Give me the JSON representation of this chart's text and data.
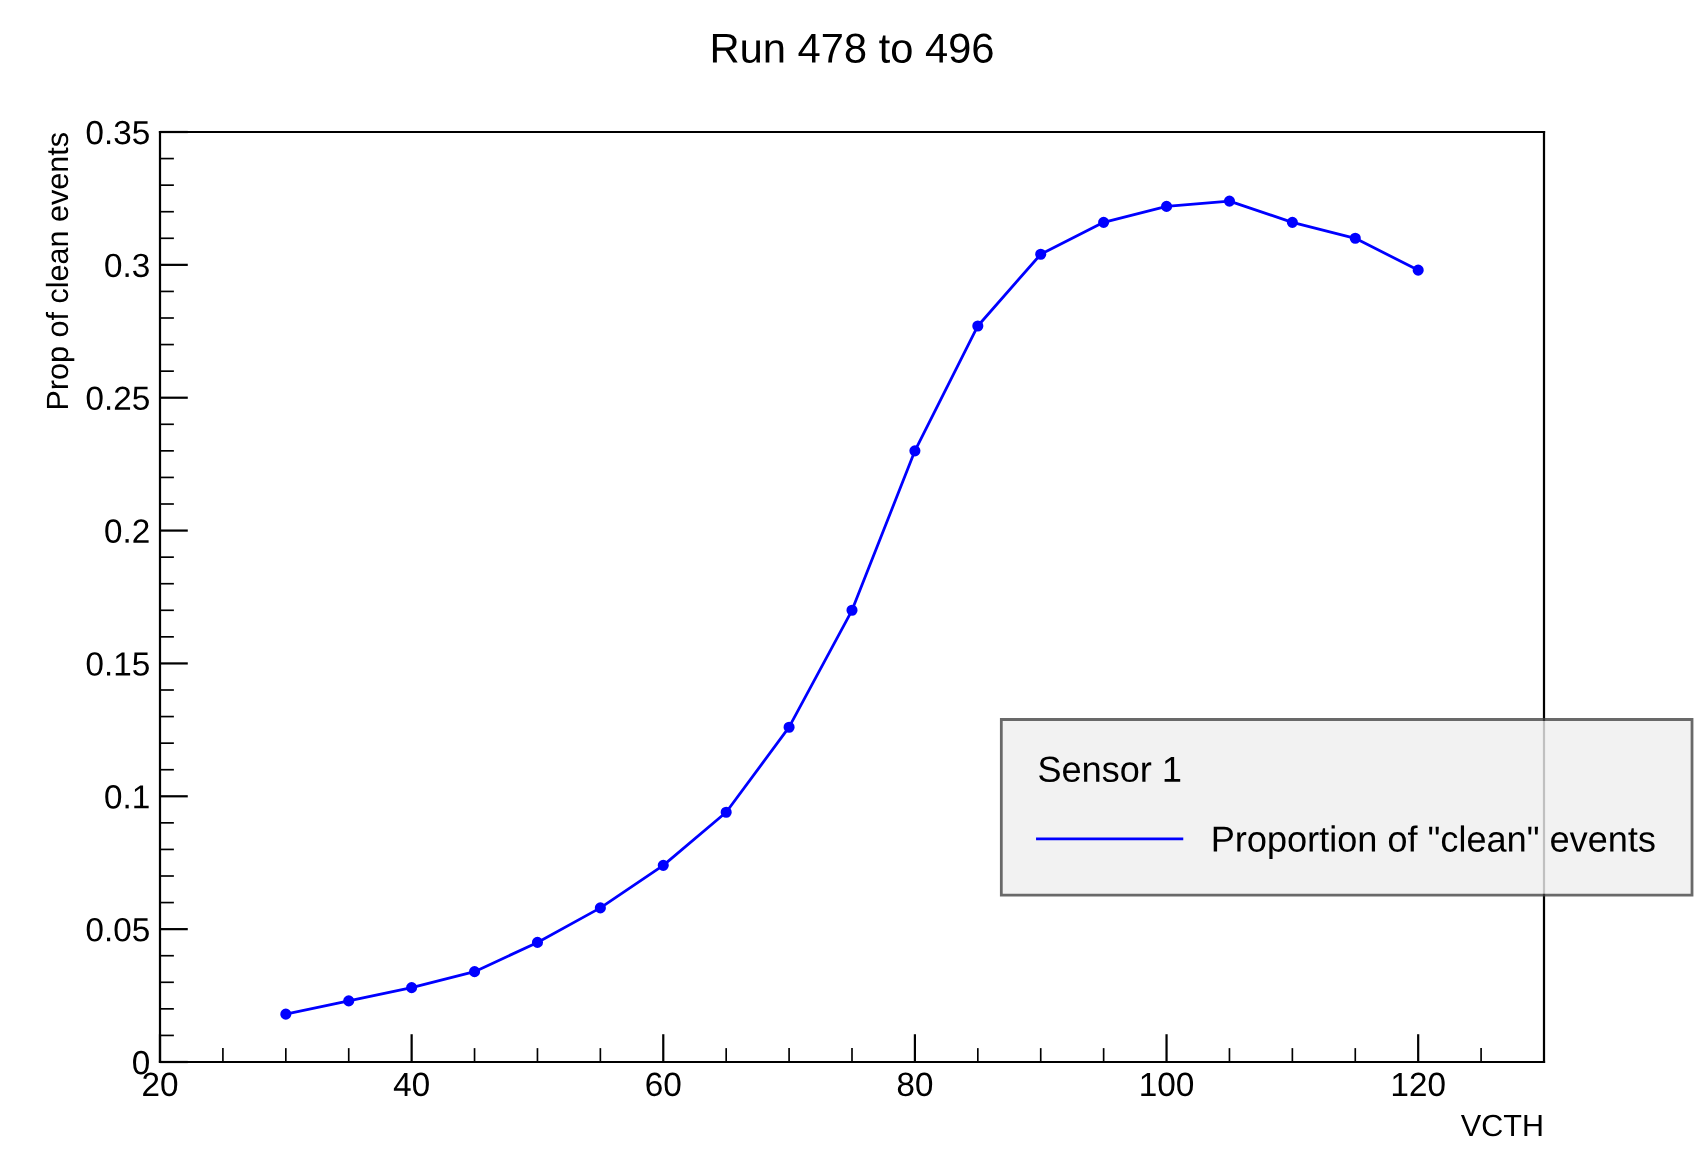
{
  "chart_data": {
    "type": "line",
    "title": "Run 478 to 496",
    "xlabel": "VCTH",
    "ylabel": "Prop of clean events",
    "legend_title": "Sensor 1",
    "x": [
      30,
      35,
      40,
      45,
      50,
      55,
      60,
      65,
      70,
      75,
      80,
      85,
      90,
      95,
      100,
      105,
      110,
      115,
      120
    ],
    "series": [
      {
        "name": "Proportion of \"clean\" events",
        "color": "#0000ff",
        "values": [
          0.018,
          0.023,
          0.028,
          0.034,
          0.045,
          0.058,
          0.074,
          0.094,
          0.126,
          0.17,
          0.23,
          0.277,
          0.304,
          0.316,
          0.322,
          0.324,
          0.316,
          0.31,
          0.298
        ]
      }
    ],
    "xlim": [
      20,
      130
    ],
    "xticks": [
      20,
      40,
      60,
      80,
      100,
      120
    ],
    "ylim": [
      0,
      0.35
    ],
    "yticks": [
      0,
      0.05,
      0.1,
      0.15,
      0.2,
      0.25,
      0.3,
      0.35
    ],
    "grid": false,
    "legend": "bottom right",
    "marker": "circle",
    "line_style": "solid"
  }
}
